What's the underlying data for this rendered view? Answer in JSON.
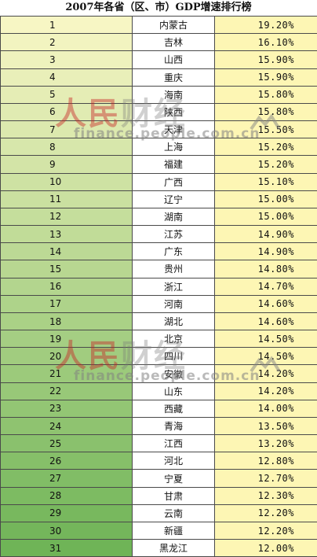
{
  "title": "2007年各省（区、市）GDP增速排行榜",
  "watermark": {
    "brand_red": "人民",
    "brand_gray": "财经",
    "url": "finance.people.com.cn"
  },
  "colors": {
    "rank_gradient_top": "#f7f6c4",
    "rank_gradient_bottom": "#6fb457",
    "rate_fill": "#fdf6b4"
  },
  "rows": [
    {
      "rank": "1",
      "province": "内蒙古",
      "rate": "19.20%"
    },
    {
      "rank": "2",
      "province": "吉林",
      "rate": "16.10%"
    },
    {
      "rank": "3",
      "province": "山西",
      "rate": "15.90%"
    },
    {
      "rank": "4",
      "province": "重庆",
      "rate": "15.90%"
    },
    {
      "rank": "5",
      "province": "海南",
      "rate": "15.80%"
    },
    {
      "rank": "6",
      "province": "陕西",
      "rate": "15.80%"
    },
    {
      "rank": "7",
      "province": "天津",
      "rate": "15.50%"
    },
    {
      "rank": "8",
      "province": "上海",
      "rate": "15.20%"
    },
    {
      "rank": "9",
      "province": "福建",
      "rate": "15.20%"
    },
    {
      "rank": "10",
      "province": "广西",
      "rate": "15.10%"
    },
    {
      "rank": "11",
      "province": "辽宁",
      "rate": "15.00%"
    },
    {
      "rank": "12",
      "province": "湖南",
      "rate": "15.00%"
    },
    {
      "rank": "13",
      "province": "江苏",
      "rate": "14.90%"
    },
    {
      "rank": "14",
      "province": "广东",
      "rate": "14.90%"
    },
    {
      "rank": "15",
      "province": "贵州",
      "rate": "14.80%"
    },
    {
      "rank": "16",
      "province": "浙江",
      "rate": "14.70%"
    },
    {
      "rank": "17",
      "province": "河南",
      "rate": "14.60%"
    },
    {
      "rank": "18",
      "province": "湖北",
      "rate": "14.60%"
    },
    {
      "rank": "19",
      "province": "北京",
      "rate": "14.50%"
    },
    {
      "rank": "20",
      "province": "四川",
      "rate": "14.50%"
    },
    {
      "rank": "21",
      "province": "安徽",
      "rate": "14.20%"
    },
    {
      "rank": "22",
      "province": "山东",
      "rate": "14.20%"
    },
    {
      "rank": "23",
      "province": "西藏",
      "rate": "14.00%"
    },
    {
      "rank": "24",
      "province": "青海",
      "rate": "13.50%"
    },
    {
      "rank": "25",
      "province": "江西",
      "rate": "13.20%"
    },
    {
      "rank": "26",
      "province": "河北",
      "rate": "12.80%"
    },
    {
      "rank": "27",
      "province": "宁夏",
      "rate": "12.70%"
    },
    {
      "rank": "28",
      "province": "甘肃",
      "rate": "12.30%"
    },
    {
      "rank": "29",
      "province": "云南",
      "rate": "12.20%"
    },
    {
      "rank": "30",
      "province": "新疆",
      "rate": "12.20%"
    },
    {
      "rank": "31",
      "province": "黑龙江",
      "rate": "12.00%"
    }
  ]
}
